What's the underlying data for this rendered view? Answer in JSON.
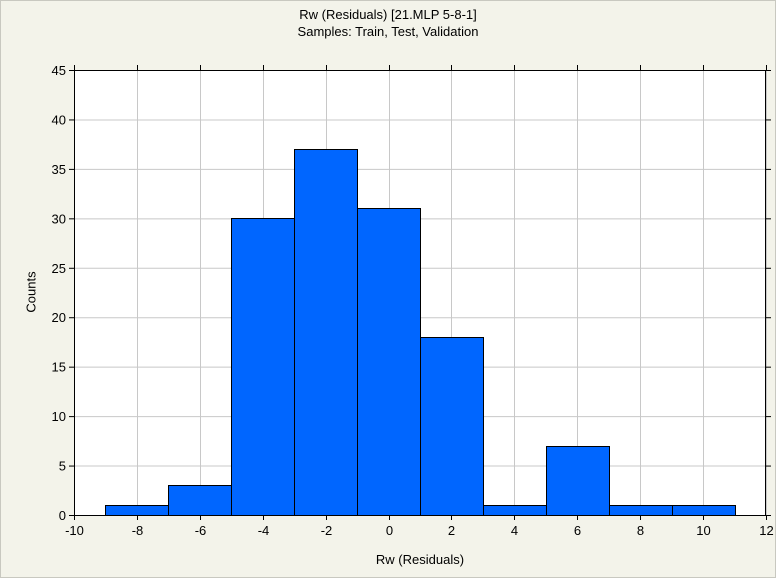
{
  "chart_data": {
    "type": "bar",
    "title": "Rw (Residuals) [21.MLP 5-8-1]",
    "subtitle": "Samples: Train, Test, Validation",
    "xlabel": "Rw (Residuals)",
    "ylabel": "Counts",
    "xlim": [
      -10,
      12
    ],
    "ylim": [
      0,
      45
    ],
    "xticks": [
      -10,
      -8,
      -6,
      -4,
      -2,
      0,
      2,
      4,
      6,
      8,
      10,
      12
    ],
    "xtick_labels": [
      "-10",
      "-8",
      "-6",
      "-4",
      "-2",
      "0",
      "2",
      "4",
      "6",
      "8",
      "10",
      "12"
    ],
    "yticks": [
      0,
      5,
      10,
      15,
      20,
      25,
      30,
      35,
      40,
      45
    ],
    "ytick_labels": [
      "0",
      "5",
      "10",
      "15",
      "20",
      "25",
      "30",
      "35",
      "40",
      "45"
    ],
    "bins": [
      {
        "start": -9,
        "end": -7,
        "count": 1
      },
      {
        "start": -7,
        "end": -5,
        "count": 3
      },
      {
        "start": -5,
        "end": -3,
        "count": 30
      },
      {
        "start": -3,
        "end": -1,
        "count": 37
      },
      {
        "start": -1,
        "end": 1,
        "count": 31
      },
      {
        "start": 1,
        "end": 3,
        "count": 18
      },
      {
        "start": 3,
        "end": 5,
        "count": 1
      },
      {
        "start": 5,
        "end": 7,
        "count": 7
      },
      {
        "start": 7,
        "end": 9,
        "count": 1
      },
      {
        "start": 9,
        "end": 11,
        "count": 1
      }
    ],
    "grid": true,
    "bar_color": "#0066ff",
    "bar_edge_color": "#000000",
    "plot_background": "#ffffff",
    "frame_background": "#f3f3ea"
  }
}
